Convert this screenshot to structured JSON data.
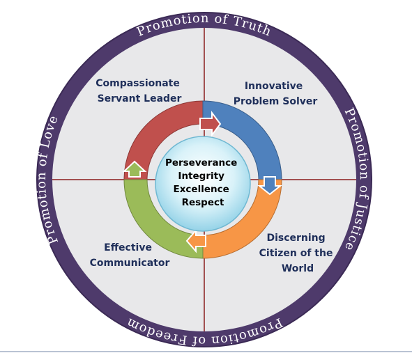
{
  "outer_ring": {
    "top": "Promotion of Truth",
    "right": "Promotion of Justice",
    "bottom": "Promotion of Freedom",
    "left": "Promotion of Love"
  },
  "quadrants": {
    "top_left": [
      "Compassionate",
      "Servant Leader"
    ],
    "top_right": [
      "Innovative",
      "Problem Solver"
    ],
    "bottom_right": [
      "Discerning",
      "Citizen of the",
      "World"
    ],
    "bottom_left": [
      "Effective",
      "Communicator"
    ]
  },
  "core": [
    "Perseverance",
    "Integrity",
    "Excellence",
    "Respect"
  ],
  "colors": {
    "outer_ring": "#4e3a6b",
    "inner_disc": "#e8e8ea",
    "divider": "#8b1c1c",
    "label_text": "#1f2f5a",
    "arc_red": "#c0504d",
    "arc_blue": "#4f81bd",
    "arc_orange": "#f79646",
    "arc_green": "#9bbb59",
    "core_fill": "#bfe6f2"
  }
}
